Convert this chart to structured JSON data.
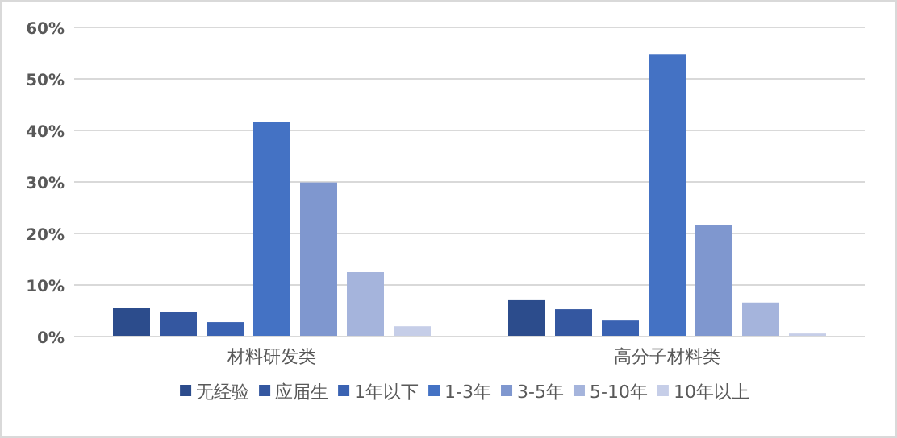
{
  "chart_data": {
    "type": "bar",
    "categories": [
      "材料研发类",
      "高分子材料类"
    ],
    "series": [
      {
        "name": "无经验",
        "color": "#2c4c8c",
        "values": [
          5.6,
          7.2
        ]
      },
      {
        "name": "应届生",
        "color": "#3457a0",
        "values": [
          4.8,
          5.3
        ]
      },
      {
        "name": "1年以下",
        "color": "#3a62b2",
        "values": [
          2.8,
          3.1
        ]
      },
      {
        "name": "1-3年",
        "color": "#4472c4",
        "values": [
          41.6,
          54.8
        ]
      },
      {
        "name": "3-5年",
        "color": "#7f97cf",
        "values": [
          29.9,
          21.6
        ]
      },
      {
        "name": "5-10年",
        "color": "#a5b4dc",
        "values": [
          12.5,
          6.6
        ]
      },
      {
        "name": "10年以上",
        "color": "#c6cee8",
        "values": [
          2.0,
          0.6
        ]
      }
    ],
    "ylim": [
      0,
      60
    ],
    "yticks": [
      {
        "value": 0,
        "label": "0%"
      },
      {
        "value": 10,
        "label": "10%"
      },
      {
        "value": 20,
        "label": "20%"
      },
      {
        "value": 30,
        "label": "30%"
      },
      {
        "value": 40,
        "label": "40%"
      },
      {
        "value": 50,
        "label": "50%"
      },
      {
        "value": 60,
        "label": "60%"
      }
    ],
    "grid": "y",
    "legend": "bottom"
  }
}
